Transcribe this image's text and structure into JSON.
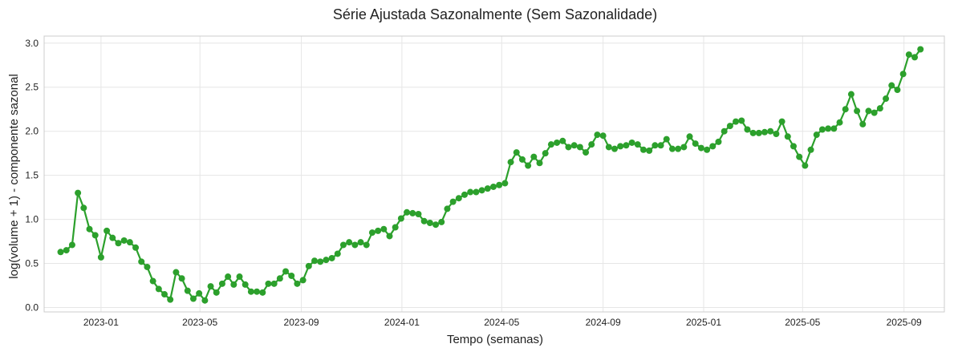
{
  "chart_data": {
    "type": "line",
    "title": "Série Ajustada Sazonalmente (Sem Sazonalidade)",
    "xlabel": "Tempo (semanas)",
    "ylabel": "log(volume + 1) - componente sazonal",
    "x_ticks": [
      "2023-01",
      "2023-05",
      "2023-09",
      "2024-01",
      "2024-05",
      "2024-09",
      "2025-01",
      "2025-05",
      "2025-09"
    ],
    "y_ticks": [
      "0.0",
      "0.5",
      "1.0",
      "1.5",
      "2.0",
      "2.5",
      "3.0"
    ],
    "xlim": [
      "2022-10-24",
      "2025-10-20"
    ],
    "ylim": [
      -0.05,
      3.08
    ],
    "grid": true,
    "colors": {
      "line": "#2ca02c",
      "grid": "#e6e6e6",
      "frame": "#cccccc"
    },
    "series": [
      {
        "marker": "circle",
        "start": "2022-11-13",
        "step_days": 7,
        "values": [
          0.63,
          0.65,
          0.71,
          1.3,
          1.13,
          0.89,
          0.82,
          0.57,
          0.87,
          0.79,
          0.73,
          0.76,
          0.74,
          0.68,
          0.52,
          0.46,
          0.3,
          0.21,
          0.15,
          0.09,
          0.4,
          0.33,
          0.19,
          0.1,
          0.16,
          0.08,
          0.24,
          0.17,
          0.27,
          0.35,
          0.26,
          0.35,
          0.26,
          0.18,
          0.18,
          0.17,
          0.27,
          0.27,
          0.33,
          0.41,
          0.36,
          0.27,
          0.31,
          0.47,
          0.53,
          0.52,
          0.54,
          0.56,
          0.61,
          0.71,
          0.74,
          0.71,
          0.74,
          0.71,
          0.85,
          0.87,
          0.89,
          0.81,
          0.91,
          1.01,
          1.08,
          1.07,
          1.06,
          0.98,
          0.96,
          0.94,
          0.97,
          1.12,
          1.2,
          1.24,
          1.28,
          1.31,
          1.31,
          1.33,
          1.35,
          1.37,
          1.39,
          1.41,
          1.65,
          1.76,
          1.68,
          1.61,
          1.71,
          1.64,
          1.75,
          1.85,
          1.87,
          1.89,
          1.82,
          1.84,
          1.82,
          1.76,
          1.85,
          1.96,
          1.95,
          1.82,
          1.8,
          1.83,
          1.84,
          1.87,
          1.85,
          1.79,
          1.78,
          1.84,
          1.84,
          1.91,
          1.8,
          1.8,
          1.82,
          1.94,
          1.86,
          1.81,
          1.79,
          1.83,
          1.88,
          2.0,
          2.06,
          2.11,
          2.12,
          2.02,
          1.98,
          1.98,
          1.99,
          2.0,
          1.97,
          2.11,
          1.94,
          1.83,
          1.71,
          1.61,
          1.79,
          1.96,
          2.02,
          2.03,
          2.03,
          2.1,
          2.25,
          2.42,
          2.23,
          2.08,
          2.23,
          2.21,
          2.26,
          2.37,
          2.52,
          2.47,
          2.65,
          2.87,
          2.84,
          2.93
        ]
      }
    ]
  }
}
